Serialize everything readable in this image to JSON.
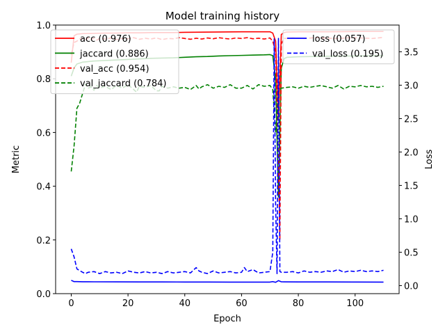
{
  "chart_data": {
    "type": "line",
    "title": "Model training history",
    "xlabel": "Epoch",
    "ylabel": "Metric",
    "y2label": "Loss",
    "xlim": [
      -5.5,
      115.5
    ],
    "ylim": [
      0.0,
      1.0
    ],
    "y2lim": [
      -0.12,
      3.9
    ],
    "x_ticks": [
      0,
      20,
      40,
      60,
      80,
      100
    ],
    "y_ticks": [
      0.0,
      0.2,
      0.4,
      0.6,
      0.8,
      1.0
    ],
    "y2_ticks": [
      0.0,
      0.5,
      1.0,
      1.5,
      2.0,
      2.5,
      3.0,
      3.5
    ],
    "grid": false,
    "legend_left_position": "top-left",
    "legend_right_position": "top-right",
    "series": [
      {
        "name": "acc (0.976)",
        "axis": "left",
        "color": "#ff0000",
        "dash": "solid",
        "points": [
          [
            0,
            0.86
          ],
          [
            1,
            0.96
          ],
          [
            2,
            0.966
          ],
          [
            4,
            0.968
          ],
          [
            8,
            0.969
          ],
          [
            12,
            0.97
          ],
          [
            16,
            0.97
          ],
          [
            20,
            0.971
          ],
          [
            24,
            0.971
          ],
          [
            28,
            0.972
          ],
          [
            32,
            0.972
          ],
          [
            36,
            0.972
          ],
          [
            40,
            0.973
          ],
          [
            50,
            0.974
          ],
          [
            60,
            0.975
          ],
          [
            70,
            0.975
          ],
          [
            71,
            0.97
          ],
          [
            72,
            0.94
          ],
          [
            73,
            0.65
          ],
          [
            74,
            0.965
          ],
          [
            75,
            0.972
          ],
          [
            76,
            0.974
          ],
          [
            80,
            0.975
          ],
          [
            90,
            0.975
          ],
          [
            100,
            0.976
          ],
          [
            110,
            0.976
          ]
        ]
      },
      {
        "name": "jaccard (0.886)",
        "axis": "left",
        "color": "#008000",
        "dash": "solid",
        "points": [
          [
            0,
            0.81
          ],
          [
            1,
            0.84
          ],
          [
            2,
            0.855
          ],
          [
            4,
            0.862
          ],
          [
            8,
            0.866
          ],
          [
            12,
            0.868
          ],
          [
            16,
            0.87
          ],
          [
            20,
            0.872
          ],
          [
            24,
            0.874
          ],
          [
            28,
            0.876
          ],
          [
            32,
            0.877
          ],
          [
            36,
            0.878
          ],
          [
            40,
            0.88
          ],
          [
            44,
            0.882
          ],
          [
            48,
            0.883
          ],
          [
            52,
            0.885
          ],
          [
            56,
            0.886
          ],
          [
            60,
            0.887
          ],
          [
            64,
            0.888
          ],
          [
            68,
            0.889
          ],
          [
            70,
            0.89
          ],
          [
            71,
            0.886
          ],
          [
            72,
            0.8
          ],
          [
            73,
            0.36
          ],
          [
            74,
            0.84
          ],
          [
            75,
            0.875
          ],
          [
            76,
            0.88
          ],
          [
            80,
            0.882
          ],
          [
            90,
            0.884
          ],
          [
            100,
            0.885
          ],
          [
            110,
            0.886
          ]
        ]
      },
      {
        "name": "val_acc (0.954)",
        "axis": "left",
        "color": "#ff0000",
        "dash": "dashed",
        "points": [
          [
            0,
            0.89
          ],
          [
            1,
            0.935
          ],
          [
            2,
            0.94
          ],
          [
            3,
            0.948
          ],
          [
            4,
            0.95
          ],
          [
            5,
            0.945
          ],
          [
            6,
            0.952
          ],
          [
            7,
            0.947
          ],
          [
            8,
            0.951
          ],
          [
            9,
            0.944
          ],
          [
            10,
            0.95
          ],
          [
            12,
            0.948
          ],
          [
            14,
            0.952
          ],
          [
            16,
            0.946
          ],
          [
            18,
            0.95
          ],
          [
            20,
            0.949
          ],
          [
            22,
            0.953
          ],
          [
            24,
            0.947
          ],
          [
            26,
            0.951
          ],
          [
            28,
            0.948
          ],
          [
            30,
            0.952
          ],
          [
            32,
            0.946
          ],
          [
            34,
            0.95
          ],
          [
            36,
            0.949
          ],
          [
            38,
            0.953
          ],
          [
            40,
            0.95
          ],
          [
            42,
            0.947
          ],
          [
            44,
            0.951
          ],
          [
            46,
            0.948
          ],
          [
            48,
            0.952
          ],
          [
            50,
            0.949
          ],
          [
            52,
            0.953
          ],
          [
            54,
            0.95
          ],
          [
            56,
            0.948
          ],
          [
            58,
            0.952
          ],
          [
            60,
            0.95
          ],
          [
            62,
            0.953
          ],
          [
            64,
            0.949
          ],
          [
            66,
            0.951
          ],
          [
            68,
            0.948
          ],
          [
            70,
            0.952
          ],
          [
            71,
            0.94
          ],
          [
            72,
            0.9
          ],
          [
            73,
            0.5
          ],
          [
            73.5,
            0.2
          ],
          [
            74,
            0.93
          ],
          [
            75,
            0.95
          ],
          [
            78,
            0.952
          ],
          [
            82,
            0.95
          ],
          [
            86,
            0.953
          ],
          [
            90,
            0.951
          ],
          [
            94,
            0.95
          ],
          [
            98,
            0.953
          ],
          [
            102,
            0.952
          ],
          [
            106,
            0.95
          ],
          [
            110,
            0.954
          ]
        ]
      },
      {
        "name": "val_jaccard (0.784)",
        "axis": "left",
        "color": "#008000",
        "dash": "dashed",
        "points": [
          [
            0,
            0.455
          ],
          [
            1,
            0.55
          ],
          [
            2,
            0.69
          ],
          [
            3,
            0.71
          ],
          [
            4,
            0.745
          ],
          [
            5,
            0.78
          ],
          [
            6,
            0.765
          ],
          [
            7,
            0.77
          ],
          [
            8,
            0.757
          ],
          [
            9,
            0.775
          ],
          [
            10,
            0.765
          ],
          [
            12,
            0.772
          ],
          [
            14,
            0.76
          ],
          [
            16,
            0.775
          ],
          [
            18,
            0.765
          ],
          [
            20,
            0.778
          ],
          [
            22,
            0.76
          ],
          [
            23,
            0.75
          ],
          [
            24,
            0.772
          ],
          [
            26,
            0.768
          ],
          [
            28,
            0.775
          ],
          [
            30,
            0.755
          ],
          [
            31,
            0.755
          ],
          [
            32,
            0.772
          ],
          [
            34,
            0.765
          ],
          [
            36,
            0.77
          ],
          [
            38,
            0.765
          ],
          [
            40,
            0.768
          ],
          [
            42,
            0.76
          ],
          [
            44,
            0.775
          ],
          [
            45,
            0.762
          ],
          [
            46,
            0.77
          ],
          [
            48,
            0.778
          ],
          [
            50,
            0.765
          ],
          [
            52,
            0.772
          ],
          [
            54,
            0.768
          ],
          [
            56,
            0.778
          ],
          [
            58,
            0.765
          ],
          [
            60,
            0.765
          ],
          [
            62,
            0.775
          ],
          [
            64,
            0.762
          ],
          [
            66,
            0.778
          ],
          [
            68,
            0.772
          ],
          [
            70,
            0.775
          ],
          [
            71,
            0.76
          ],
          [
            72,
            0.6
          ],
          [
            73,
            0.755
          ],
          [
            74,
            0.765
          ],
          [
            76,
            0.768
          ],
          [
            78,
            0.77
          ],
          [
            80,
            0.765
          ],
          [
            82,
            0.772
          ],
          [
            84,
            0.768
          ],
          [
            86,
            0.772
          ],
          [
            88,
            0.775
          ],
          [
            90,
            0.77
          ],
          [
            92,
            0.765
          ],
          [
            94,
            0.775
          ],
          [
            96,
            0.762
          ],
          [
            98,
            0.772
          ],
          [
            100,
            0.77
          ],
          [
            102,
            0.775
          ],
          [
            104,
            0.77
          ],
          [
            106,
            0.772
          ],
          [
            108,
            0.768
          ],
          [
            110,
            0.772
          ]
        ]
      },
      {
        "name": "loss (0.057)",
        "axis": "right",
        "color": "#0000ff",
        "dash": "solid",
        "points": [
          [
            0,
            0.08
          ],
          [
            1,
            0.06
          ],
          [
            2,
            0.06
          ],
          [
            4,
            0.058
          ],
          [
            8,
            0.057
          ],
          [
            16,
            0.056
          ],
          [
            24,
            0.055
          ],
          [
            32,
            0.055
          ],
          [
            40,
            0.054
          ],
          [
            48,
            0.054
          ],
          [
            56,
            0.053
          ],
          [
            64,
            0.053
          ],
          [
            70,
            0.053
          ],
          [
            71,
            0.06
          ],
          [
            72,
            0.05
          ],
          [
            73,
            0.075
          ],
          [
            74,
            0.057
          ],
          [
            75,
            0.056
          ],
          [
            80,
            0.055
          ],
          [
            90,
            0.055
          ],
          [
            100,
            0.054
          ],
          [
            110,
            0.053
          ]
        ]
      },
      {
        "name": "val_loss (0.195)",
        "axis": "right",
        "color": "#0000ff",
        "dash": "dashed",
        "points": [
          [
            0,
            0.55
          ],
          [
            1,
            0.43
          ],
          [
            2,
            0.25
          ],
          [
            4,
            0.2
          ],
          [
            5,
            0.18
          ],
          [
            6,
            0.2
          ],
          [
            8,
            0.21
          ],
          [
            10,
            0.18
          ],
          [
            12,
            0.21
          ],
          [
            14,
            0.19
          ],
          [
            16,
            0.2
          ],
          [
            18,
            0.18
          ],
          [
            20,
            0.22
          ],
          [
            22,
            0.2
          ],
          [
            24,
            0.19
          ],
          [
            26,
            0.21
          ],
          [
            28,
            0.19
          ],
          [
            30,
            0.2
          ],
          [
            32,
            0.18
          ],
          [
            34,
            0.21
          ],
          [
            36,
            0.19
          ],
          [
            38,
            0.2
          ],
          [
            40,
            0.21
          ],
          [
            42,
            0.19
          ],
          [
            44,
            0.27
          ],
          [
            45,
            0.22
          ],
          [
            46,
            0.2
          ],
          [
            48,
            0.18
          ],
          [
            50,
            0.22
          ],
          [
            52,
            0.19
          ],
          [
            54,
            0.2
          ],
          [
            56,
            0.21
          ],
          [
            58,
            0.19
          ],
          [
            60,
            0.2
          ],
          [
            61,
            0.27
          ],
          [
            62,
            0.21
          ],
          [
            64,
            0.24
          ],
          [
            66,
            0.19
          ],
          [
            68,
            0.2
          ],
          [
            70,
            0.21
          ],
          [
            71,
            0.5
          ],
          [
            71.5,
            3.7
          ],
          [
            72,
            1.2
          ],
          [
            72.5,
            0.18
          ],
          [
            73,
            3.7
          ],
          [
            73.5,
            0.21
          ],
          [
            74,
            0.2
          ],
          [
            76,
            0.2
          ],
          [
            78,
            0.21
          ],
          [
            80,
            0.19
          ],
          [
            82,
            0.22
          ],
          [
            84,
            0.2
          ],
          [
            86,
            0.21
          ],
          [
            88,
            0.2
          ],
          [
            90,
            0.22
          ],
          [
            92,
            0.21
          ],
          [
            94,
            0.24
          ],
          [
            96,
            0.2
          ],
          [
            98,
            0.22
          ],
          [
            100,
            0.21
          ],
          [
            102,
            0.23
          ],
          [
            104,
            0.21
          ],
          [
            106,
            0.22
          ],
          [
            108,
            0.21
          ],
          [
            110,
            0.23
          ]
        ]
      }
    ]
  }
}
